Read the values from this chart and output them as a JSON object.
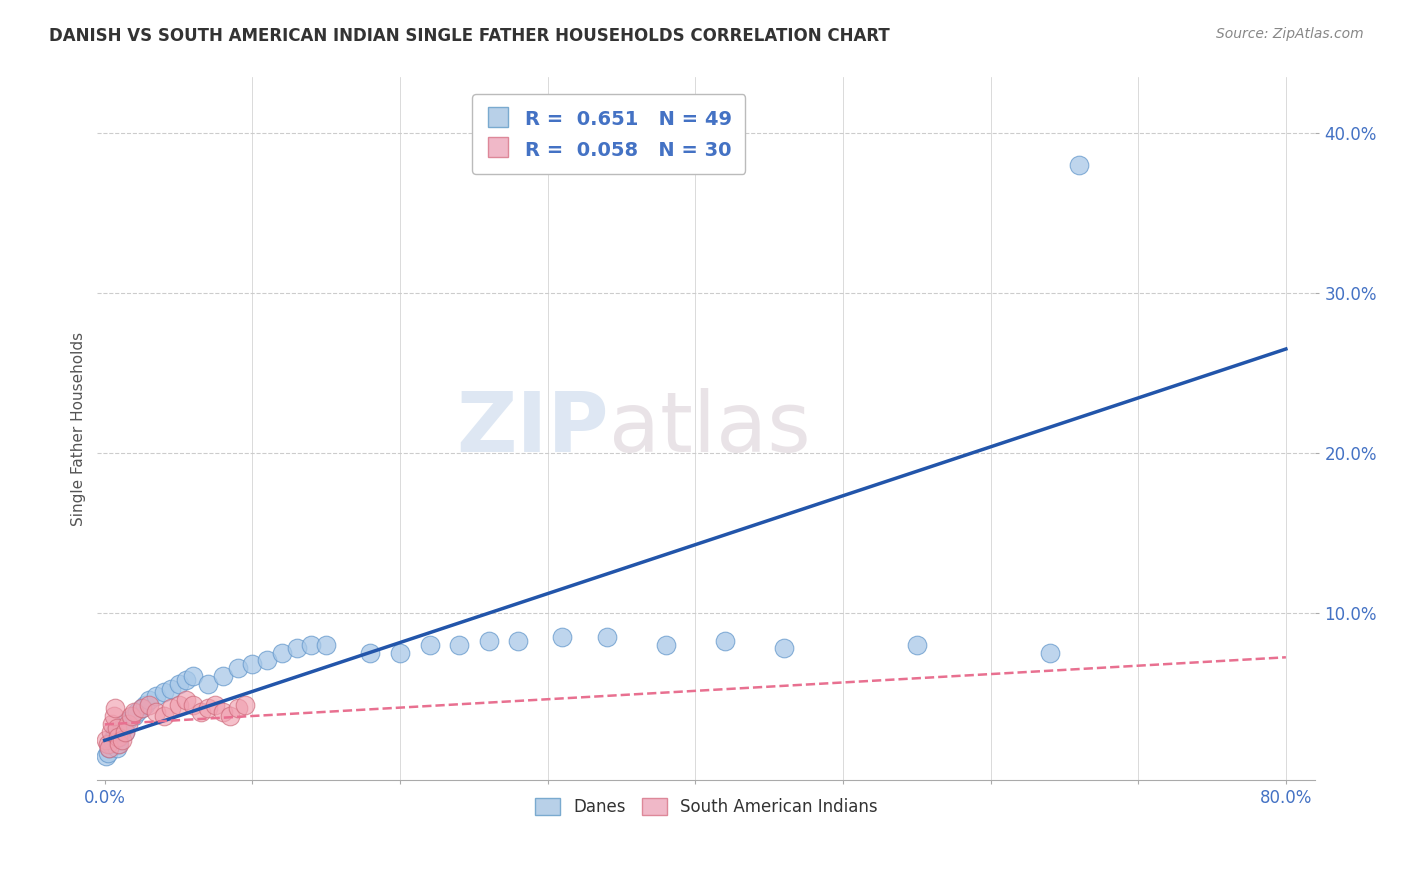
{
  "title": "DANISH VS SOUTH AMERICAN INDIAN SINGLE FATHER HOUSEHOLDS CORRELATION CHART",
  "source": "Source: ZipAtlas.com",
  "ylabel": "Single Father Households",
  "ytick_vals": [
    0.0,
    0.1,
    0.2,
    0.3,
    0.4
  ],
  "xlim": [
    -0.005,
    0.82
  ],
  "ylim": [
    -0.005,
    0.435
  ],
  "watermark_zip": "ZIP",
  "watermark_atlas": "atlas",
  "legend_line1": "R =  0.651   N = 49",
  "legend_line2": "R =  0.058   N = 30",
  "legend_labels": [
    "Danes",
    "South American Indians"
  ],
  "danes_color": "#a8c8e8",
  "sai_color": "#f0a0b0",
  "dane_line_color": "#2255aa",
  "sai_line_color": "#e87090",
  "background_color": "#ffffff",
  "grid_color": "#cccccc",
  "danes_x": [
    0.001,
    0.002,
    0.003,
    0.004,
    0.005,
    0.006,
    0.007,
    0.008,
    0.009,
    0.01,
    0.011,
    0.012,
    0.013,
    0.014,
    0.015,
    0.02,
    0.022,
    0.025,
    0.027,
    0.03,
    0.035,
    0.04,
    0.045,
    0.05,
    0.055,
    0.06,
    0.07,
    0.08,
    0.09,
    0.1,
    0.11,
    0.12,
    0.13,
    0.14,
    0.15,
    0.18,
    0.2,
    0.22,
    0.24,
    0.26,
    0.28,
    0.31,
    0.34,
    0.38,
    0.42,
    0.46,
    0.55,
    0.64,
    0.66
  ],
  "danes_y": [
    0.01,
    0.012,
    0.015,
    0.018,
    0.02,
    0.022,
    0.025,
    0.015,
    0.018,
    0.022,
    0.025,
    0.028,
    0.03,
    0.025,
    0.032,
    0.035,
    0.038,
    0.04,
    0.042,
    0.045,
    0.048,
    0.05,
    0.052,
    0.055,
    0.058,
    0.06,
    0.055,
    0.06,
    0.065,
    0.068,
    0.07,
    0.075,
    0.078,
    0.08,
    0.08,
    0.075,
    0.075,
    0.08,
    0.08,
    0.082,
    0.082,
    0.085,
    0.085,
    0.08,
    0.082,
    0.078,
    0.08,
    0.075,
    0.38
  ],
  "sai_x": [
    0.001,
    0.002,
    0.003,
    0.004,
    0.005,
    0.006,
    0.007,
    0.008,
    0.009,
    0.01,
    0.012,
    0.014,
    0.016,
    0.018,
    0.02,
    0.025,
    0.03,
    0.035,
    0.04,
    0.045,
    0.05,
    0.055,
    0.06,
    0.065,
    0.07,
    0.075,
    0.08,
    0.085,
    0.09,
    0.095
  ],
  "sai_y": [
    0.02,
    0.018,
    0.015,
    0.025,
    0.03,
    0.035,
    0.04,
    0.028,
    0.022,
    0.018,
    0.02,
    0.025,
    0.03,
    0.035,
    0.038,
    0.04,
    0.042,
    0.038,
    0.035,
    0.04,
    0.042,
    0.045,
    0.042,
    0.038,
    0.04,
    0.042,
    0.038,
    0.035,
    0.04,
    0.042
  ],
  "dane_trend_x": [
    0.0,
    0.8
  ],
  "dane_trend_y": [
    0.02,
    0.265
  ],
  "sai_trend_x": [
    0.0,
    0.8
  ],
  "sai_trend_y": [
    0.03,
    0.072
  ]
}
